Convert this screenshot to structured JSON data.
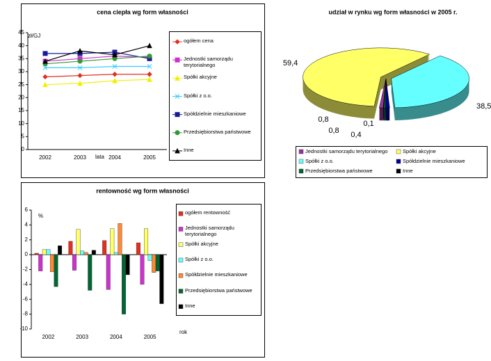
{
  "chart_data": [
    {
      "type": "line",
      "title": "cena ciepła wg form własności",
      "y_label": "zł/GJ",
      "x_label": "lata",
      "categories": [
        "2002",
        "2003",
        "2004",
        "2005"
      ],
      "ylim": [
        0,
        45
      ],
      "yticks": [
        0,
        5,
        10,
        15,
        20,
        25,
        30,
        35,
        40,
        45
      ],
      "series": [
        {
          "name": "ogółem cena",
          "color": "#e03020",
          "marker": "diamond",
          "values": [
            28,
            28.5,
            29,
            29
          ]
        },
        {
          "name": "Jednostki samorządu terytorialnego",
          "color": "#cc33cc",
          "marker": "square",
          "values": [
            34,
            35,
            36,
            35.5
          ]
        },
        {
          "name": "Spółki akcyjne",
          "color": "#f0f000",
          "marker": "triangle",
          "values": [
            25,
            25.5,
            26.5,
            27
          ]
        },
        {
          "name": "Spółki z o.o.",
          "color": "#33ccff",
          "marker": "x",
          "values": [
            31.5,
            31.5,
            32,
            32
          ]
        },
        {
          "name": "Spółdzielnie mieszkaniowe",
          "color": "#1a1a99",
          "marker": "square",
          "values": [
            37,
            37,
            37.5,
            35
          ]
        },
        {
          "name": "Przedsiębiorstwa państwowe",
          "color": "#339933",
          "marker": "circle",
          "values": [
            33,
            34,
            35,
            36
          ]
        },
        {
          "name": "Inne",
          "color": "#000000",
          "marker": "triangle",
          "values": [
            34,
            38,
            36.5,
            40
          ]
        }
      ]
    },
    {
      "type": "pie",
      "title": "udział w rynku wg form własności w 2005 r.",
      "categories": [
        "Jednostki samorządu terytorialnego",
        "Spółki akcyjne",
        "Spółki z o.o.",
        "Spółdzielnie mieszkaniowe",
        "Przedsiębiorstwa państwowe",
        "Inne"
      ],
      "values": [
        0.8,
        59.4,
        38.5,
        0.8,
        0.4,
        0.1
      ],
      "value_labels": [
        "0,8",
        "59,4",
        "38,5",
        "0,8",
        "0,4",
        "0,1"
      ],
      "colors": [
        "#993399",
        "#ffff66",
        "#66ffff",
        "#000099",
        "#006633",
        "#000000"
      ]
    },
    {
      "type": "bar",
      "title": "rentowność wg form własności",
      "y_label": "%",
      "x_label": "rok",
      "categories": [
        "2002",
        "2003",
        "2004",
        "2005"
      ],
      "ylim": [
        -10,
        6
      ],
      "yticks": [
        -10,
        -8,
        -6,
        -4,
        -2,
        0,
        2,
        4,
        6
      ],
      "series": [
        {
          "name": "ogółem rentowność",
          "color": "#e03020",
          "values": [
            0.2,
            1.8,
            1.9,
            1.6
          ]
        },
        {
          "name": "Jednostki samorządu terytorialnego",
          "color": "#cc33cc",
          "values": [
            -2.2,
            -2.1,
            -4.7,
            -4.0
          ]
        },
        {
          "name": "Spółki akcyjne",
          "color": "#ffff66",
          "values": [
            0.7,
            3.4,
            3.5,
            3.5
          ]
        },
        {
          "name": "Spółki z o.o.",
          "color": "#66ffff",
          "values": [
            0.7,
            0.5,
            0.3,
            -0.8
          ]
        },
        {
          "name": "Spółdzielnie mieszkaniowe",
          "color": "#ff8833",
          "values": [
            -2.3,
            0.3,
            4.2,
            -2.4
          ]
        },
        {
          "name": "Przedsiębiorstwa państwowe",
          "color": "#006633",
          "values": [
            -4.3,
            -4.8,
            -8.0,
            -2.2
          ]
        },
        {
          "name": "Inne",
          "color": "#000000",
          "values": [
            1.2,
            0.6,
            -2.7,
            -6.6
          ]
        }
      ]
    }
  ]
}
